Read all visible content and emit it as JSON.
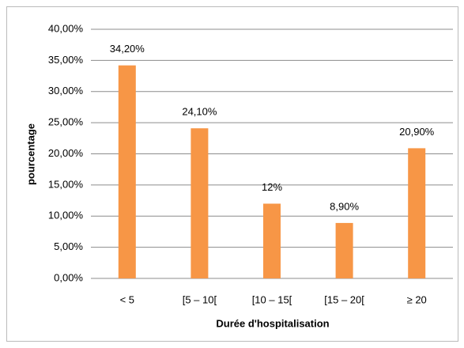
{
  "chart_data": {
    "type": "bar",
    "x_label": "Durée d'hospitalisation",
    "y_label": "pourcentage",
    "categories": [
      "< 5",
      "[5 – 10[",
      "[10 – 15[",
      "[15 – 20[",
      "≥ 20"
    ],
    "values": [
      34.2,
      24.1,
      12,
      8.9,
      20.9
    ],
    "value_labels": [
      "34,20%",
      "24,10%",
      "12%",
      "8,90%",
      "20,90%"
    ],
    "color": "#f79646",
    "ylim": [
      0,
      40
    ],
    "yticks": [
      {
        "value": 0,
        "label": "0,00%"
      },
      {
        "value": 5,
        "label": "5,00%"
      },
      {
        "value": 10,
        "label": "10,00%"
      },
      {
        "value": 15,
        "label": "15,00%"
      },
      {
        "value": 20,
        "label": "20,00%"
      },
      {
        "value": 25,
        "label": "25,00%"
      },
      {
        "value": 30,
        "label": "30,00%"
      },
      {
        "value": 35,
        "label": "35,00%"
      },
      {
        "value": 40,
        "label": "40,00%"
      }
    ],
    "grid": true
  }
}
